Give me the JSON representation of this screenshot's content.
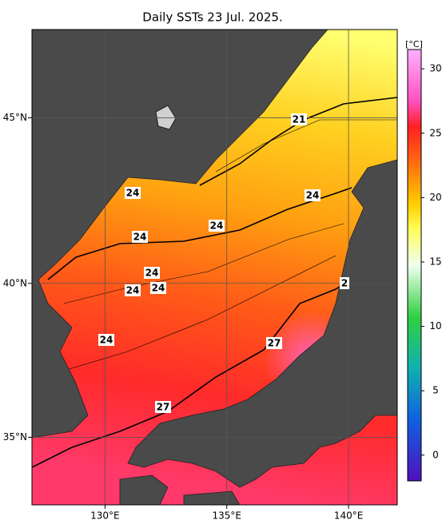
{
  "title": "Daily SSTs 23 Jul. 2025.",
  "map": {
    "lonlim": [
      127,
      142
    ],
    "latlim": [
      32.7,
      47.5
    ],
    "lon_ticks": [
      {
        "value": 130,
        "label": "130°E"
      },
      {
        "value": 135,
        "label": "135°E"
      },
      {
        "value": 140,
        "label": "140°E"
      }
    ],
    "lat_ticks": [
      {
        "value": 45,
        "label": "45°N"
      },
      {
        "value": 40,
        "label": "40°N"
      },
      {
        "value": 35,
        "label": "35°N"
      }
    ]
  },
  "colorbar": {
    "unit": "[°C]",
    "range": [
      -2,
      31.5
    ],
    "ticks": [
      0,
      5,
      10,
      15,
      20,
      25,
      30
    ]
  },
  "contour_labels": [
    "21",
    "24",
    "24",
    "24",
    "24",
    "24",
    "24",
    "24",
    "24",
    "2",
    "27",
    "27"
  ]
}
